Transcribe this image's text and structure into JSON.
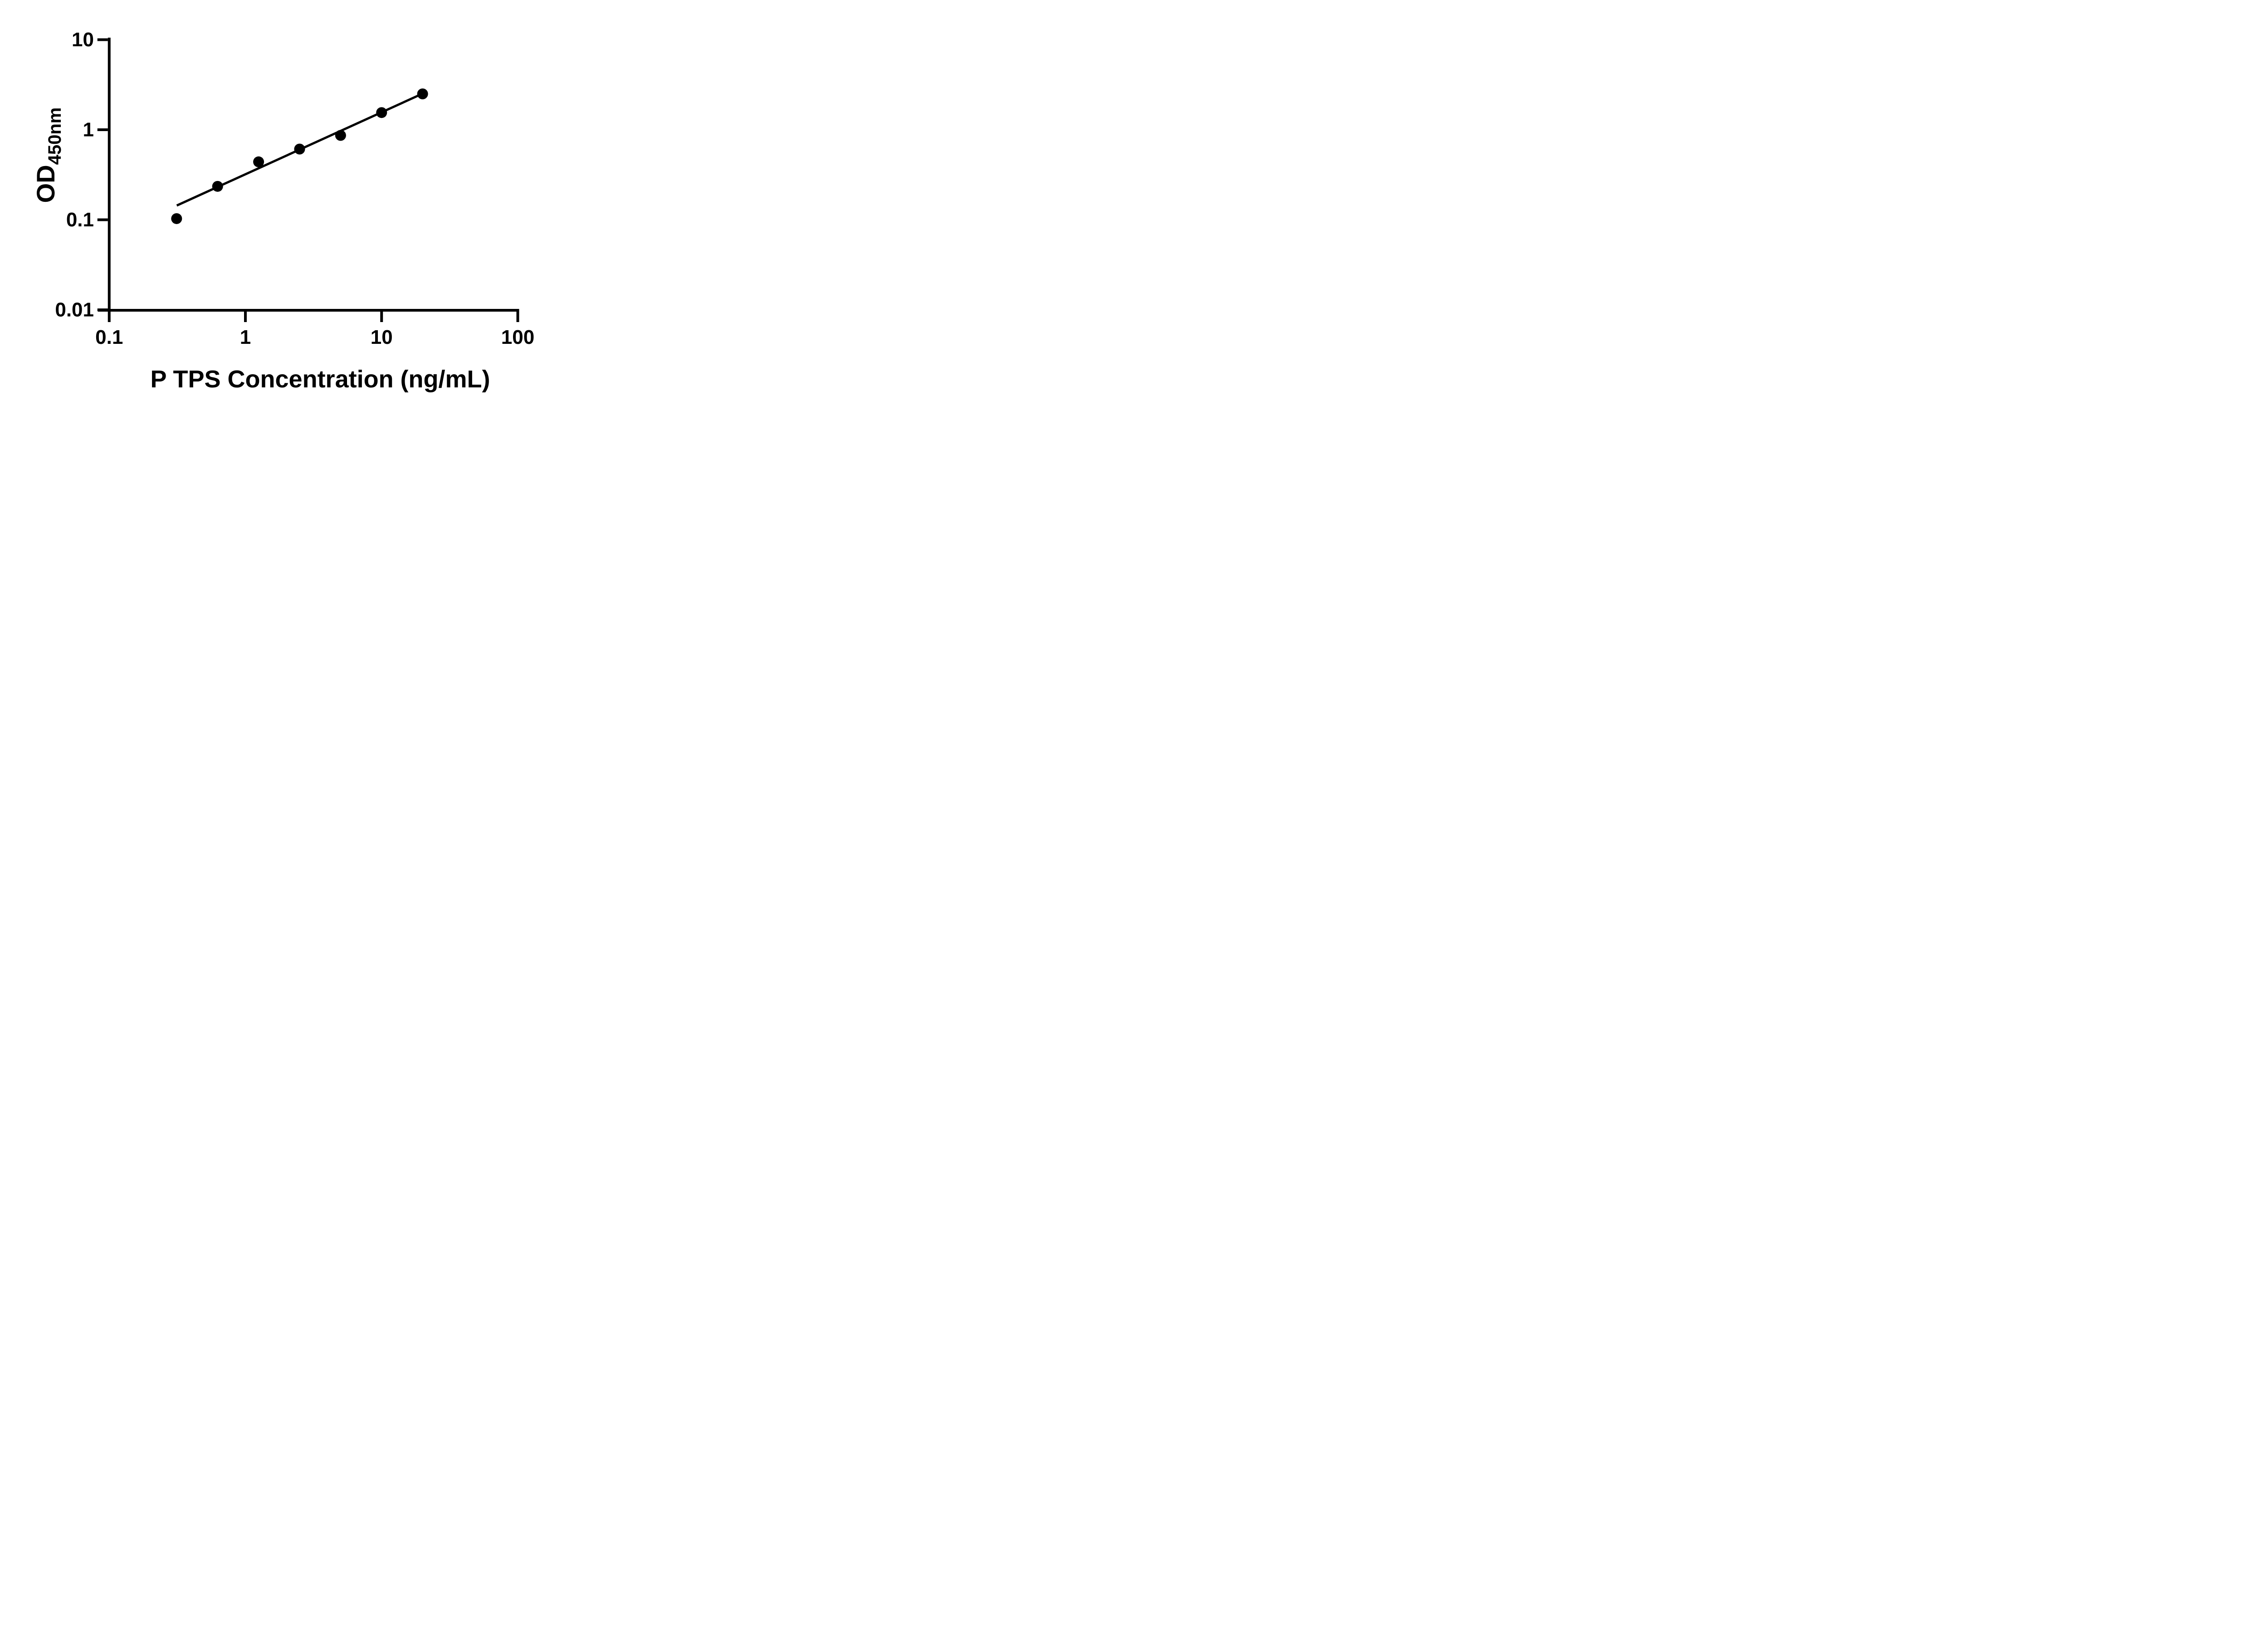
{
  "figure": {
    "background_color": "#ffffff",
    "ink_color": "#000000"
  },
  "chart_data": {
    "type": "scatter",
    "title": "",
    "xlabel": "P TPS Concentration (ng/mL)",
    "ylabel_main": "OD",
    "ylabel_subscript": "450nm",
    "x_scale": "log10",
    "y_scale": "log10",
    "xlim": [
      0.1,
      100
    ],
    "ylim": [
      0.01,
      10
    ],
    "x_ticks": [
      0.1,
      1,
      10,
      100
    ],
    "x_tick_labels": [
      "0.1",
      "1",
      "10",
      "100"
    ],
    "y_ticks": [
      10,
      1,
      0.1,
      0.01
    ],
    "y_tick_labels": [
      "10",
      "1",
      "0.1",
      "0.01"
    ],
    "grid": "off",
    "legend": "none",
    "series": [
      {
        "name": "standard-curve-points",
        "marker": "filled-black-circle",
        "x": [
          0.3125,
          0.625,
          1.25,
          2.5,
          5,
          10,
          20
        ],
        "y": [
          0.103,
          0.235,
          0.44,
          0.61,
          0.865,
          1.55,
          2.5
        ]
      }
    ],
    "trend_line": {
      "x_start": 0.3135,
      "y_start": 0.144,
      "x_end": 20,
      "y_end": 2.518,
      "shape": "straight-in-log-log",
      "log_log_slope": 0.686
    }
  }
}
